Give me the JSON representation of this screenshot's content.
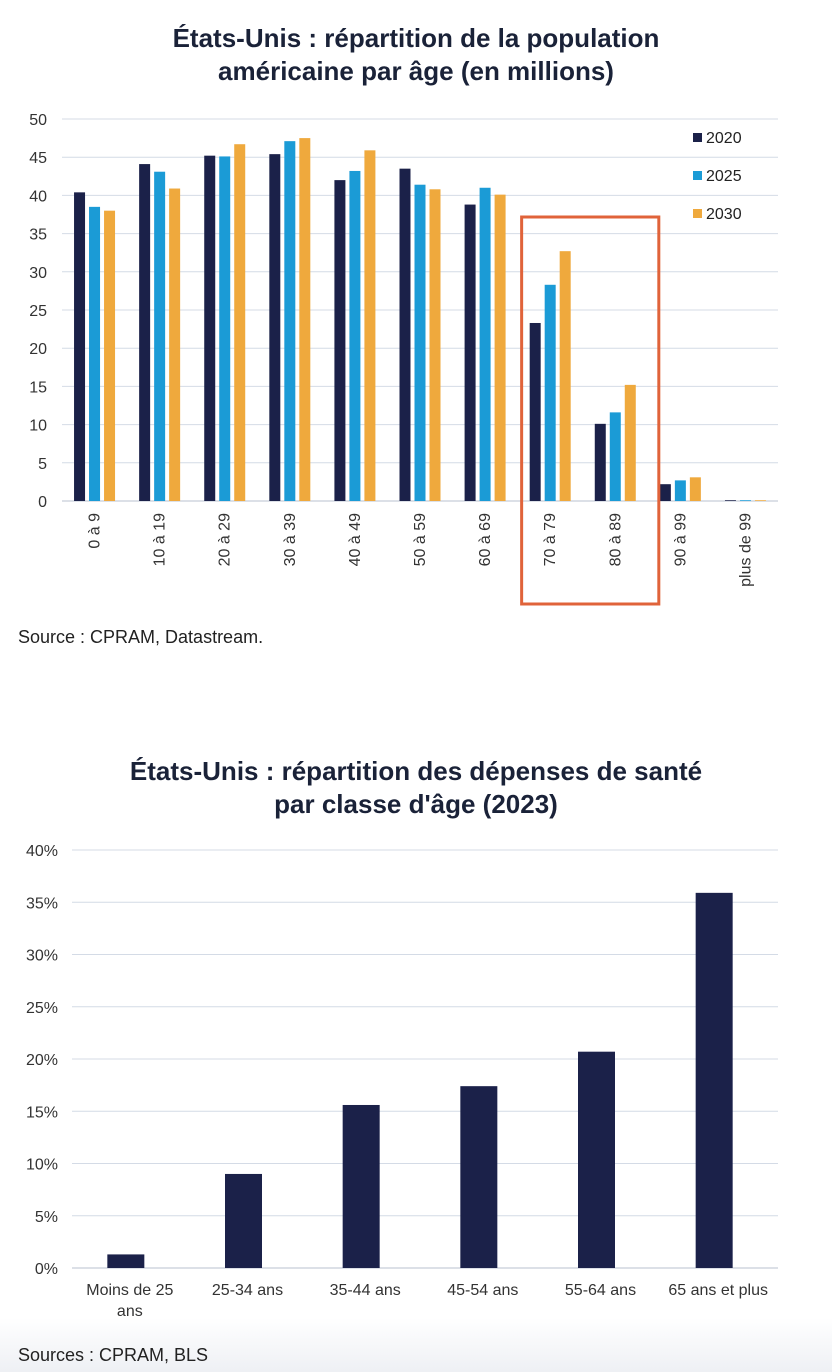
{
  "chart_data": [
    {
      "type": "bar",
      "title_lines": [
        "États-Unis : répartition de la population",
        "américaine par âge (en millions)"
      ],
      "categories": [
        "0 à 9",
        "10 à 19",
        "20 à 29",
        "30 à 39",
        "40 à 49",
        "50 à 59",
        "60 à 69",
        "70 à 79",
        "80 à 89",
        "90 à 99",
        "plus de 99"
      ],
      "series": [
        {
          "name": "2020",
          "color": "#1b2149",
          "values": [
            40.4,
            44.1,
            45.2,
            45.4,
            42.0,
            43.5,
            38.8,
            23.3,
            10.1,
            2.2,
            0.1
          ]
        },
        {
          "name": "2025",
          "color": "#1b9bd6",
          "values": [
            38.5,
            43.1,
            45.1,
            47.1,
            43.2,
            41.4,
            41.0,
            28.3,
            11.6,
            2.7,
            0.1
          ]
        },
        {
          "name": "2030",
          "color": "#efa93d",
          "values": [
            38.0,
            40.9,
            46.7,
            47.5,
            45.9,
            40.8,
            40.1,
            32.7,
            15.2,
            3.1,
            0.1
          ]
        }
      ],
      "ylim": [
        0,
        50
      ],
      "yticks": [
        0,
        5,
        10,
        15,
        20,
        25,
        30,
        35,
        40,
        45,
        50
      ],
      "highlight": {
        "categories": [
          "70 à 79",
          "80 à 89"
        ],
        "color": "#e0633a"
      },
      "legend": "top-right",
      "grid": true,
      "source": "Source : CPRAM, Datastream."
    },
    {
      "type": "bar",
      "title_lines": [
        "États-Unis : répartition des dépenses de santé",
        "par classe d'âge (2023)"
      ],
      "categories": [
        [
          "Moins de 25",
          "ans"
        ],
        [
          "25-34 ans"
        ],
        [
          "35-44 ans"
        ],
        [
          "45-54 ans"
        ],
        [
          "55-64 ans"
        ],
        [
          "65 ans et plus"
        ]
      ],
      "values": [
        1.3,
        9.0,
        15.6,
        17.4,
        20.7,
        35.9
      ],
      "color": "#1b2149",
      "ylim": [
        0,
        40
      ],
      "yticks": [
        "0%",
        "5%",
        "10%",
        "15%",
        "20%",
        "25%",
        "30%",
        "35%",
        "40%"
      ],
      "grid": true,
      "source": "Sources : CPRAM, BLS"
    }
  ]
}
